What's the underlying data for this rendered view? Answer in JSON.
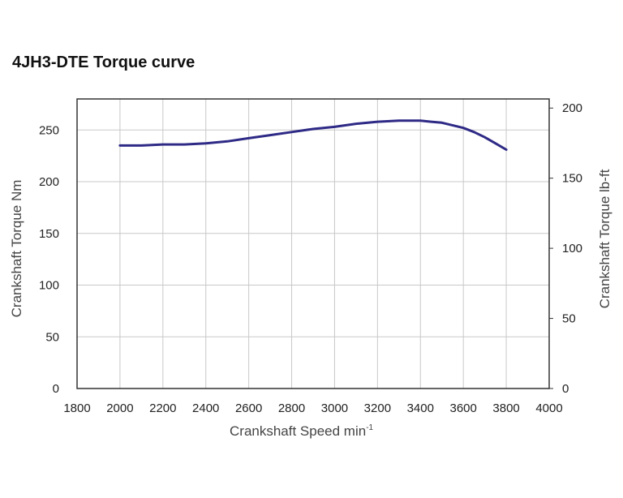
{
  "chart_data": {
    "type": "line",
    "title": "4JH3-DTE Torque curve",
    "xlabel": "Crankshaft Speed min",
    "xlabel_superscript": "-1",
    "ylabel": "Crankshaft Torque  Nm",
    "ylabel_right": "Crankshaft Torque  lb-ft",
    "xlim": [
      1800,
      4000
    ],
    "ylim": [
      0,
      280
    ],
    "ylim_right": [
      0,
      206.5
    ],
    "x_ticks": [
      1800,
      2000,
      2200,
      2400,
      2600,
      2800,
      3000,
      3200,
      3400,
      3600,
      3800,
      4000
    ],
    "y_ticks": [
      0,
      50,
      100,
      150,
      200,
      250
    ],
    "y_ticks_right": [
      0,
      50,
      100,
      150,
      200
    ],
    "grid": true,
    "colors": {
      "line": "#2e2a86",
      "grid": "#c8c8c8",
      "axis": "#333333"
    },
    "series": [
      {
        "name": "Torque",
        "x": [
          2000,
          2100,
          2200,
          2300,
          2400,
          2500,
          2600,
          2700,
          2800,
          2900,
          3000,
          3100,
          3200,
          3300,
          3400,
          3450,
          3500,
          3600,
          3650,
          3700,
          3750,
          3800
        ],
        "y": [
          235,
          235,
          236,
          236,
          237,
          239,
          242,
          245,
          248,
          251,
          253,
          256,
          258,
          259,
          259,
          258,
          257,
          252,
          248,
          243,
          237,
          231
        ]
      }
    ]
  }
}
